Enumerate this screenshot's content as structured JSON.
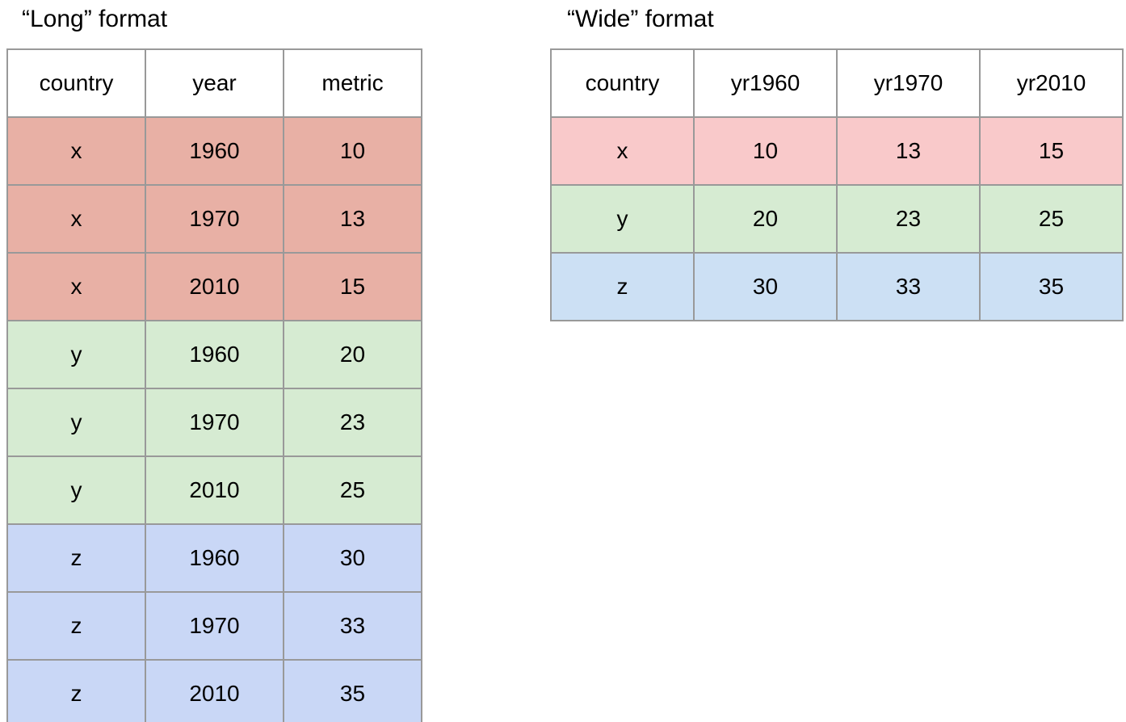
{
  "colors": {
    "border": "#999999",
    "text": "#000000",
    "header_bg": "#ffffff",
    "long_row_x": "#e8b0a5",
    "long_row_y": "#d6ebd2",
    "long_row_z": "#c9d7f6",
    "wide_row_x": "#f9c9ca",
    "wide_row_y": "#d6ebd2",
    "wide_row_z": "#cce0f4"
  },
  "long_table": {
    "title": "“Long” format",
    "headers": [
      "country",
      "year",
      "metric"
    ],
    "rows": [
      {
        "group": "x",
        "cells": [
          "x",
          "1960",
          "10"
        ]
      },
      {
        "group": "x",
        "cells": [
          "x",
          "1970",
          "13"
        ]
      },
      {
        "group": "x",
        "cells": [
          "x",
          "2010",
          "15"
        ]
      },
      {
        "group": "y",
        "cells": [
          "y",
          "1960",
          "20"
        ]
      },
      {
        "group": "y",
        "cells": [
          "y",
          "1970",
          "23"
        ]
      },
      {
        "group": "y",
        "cells": [
          "y",
          "2010",
          "25"
        ]
      },
      {
        "group": "z",
        "cells": [
          "z",
          "1960",
          "30"
        ]
      },
      {
        "group": "z",
        "cells": [
          "z",
          "1970",
          "33"
        ]
      },
      {
        "group": "z",
        "cells": [
          "z",
          "2010",
          "35"
        ]
      }
    ]
  },
  "wide_table": {
    "title": "“Wide” format",
    "headers": [
      "country",
      "yr1960",
      "yr1970",
      "yr2010"
    ],
    "rows": [
      {
        "group": "x",
        "cells": [
          "x",
          "10",
          "13",
          "15"
        ]
      },
      {
        "group": "y",
        "cells": [
          "y",
          "20",
          "23",
          "25"
        ]
      },
      {
        "group": "z",
        "cells": [
          "z",
          "30",
          "33",
          "35"
        ]
      }
    ]
  },
  "chart_data": [
    {
      "type": "table",
      "title": "“Long” format",
      "columns": [
        "country",
        "year",
        "metric"
      ],
      "rows": [
        [
          "x",
          1960,
          10
        ],
        [
          "x",
          1970,
          13
        ],
        [
          "x",
          2010,
          15
        ],
        [
          "y",
          1960,
          20
        ],
        [
          "y",
          1970,
          23
        ],
        [
          "y",
          2010,
          25
        ],
        [
          "z",
          1960,
          30
        ],
        [
          "z",
          1970,
          33
        ],
        [
          "z",
          2010,
          35
        ]
      ]
    },
    {
      "type": "table",
      "title": "“Wide” format",
      "columns": [
        "country",
        "yr1960",
        "yr1970",
        "yr2010"
      ],
      "rows": [
        [
          "x",
          10,
          13,
          15
        ],
        [
          "y",
          20,
          23,
          25
        ],
        [
          "z",
          30,
          33,
          35
        ]
      ]
    }
  ]
}
